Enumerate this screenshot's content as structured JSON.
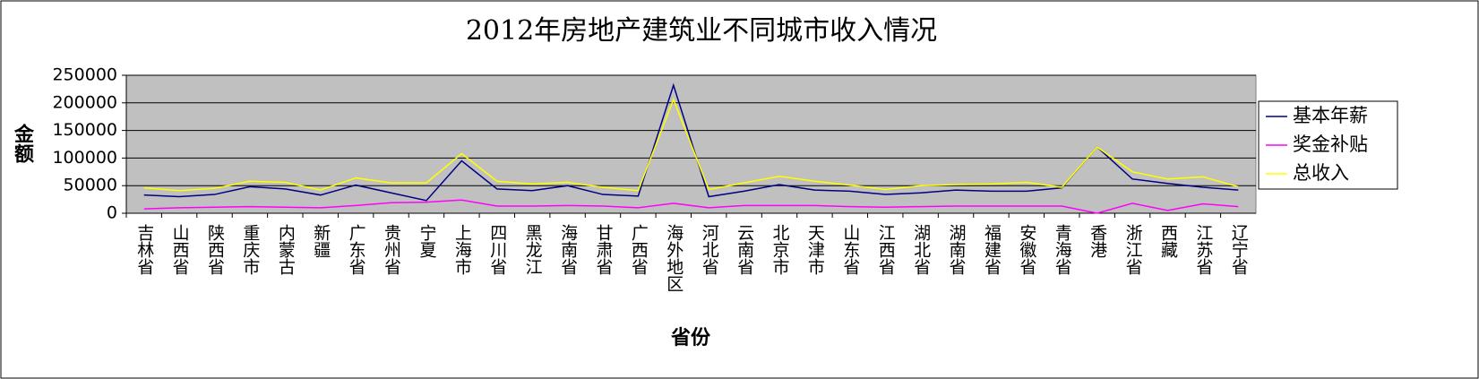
{
  "chart_data": {
    "type": "line",
    "title": "2012年房地产建筑业不同城市收入情况",
    "x_label": "省份",
    "y_label": "金额",
    "categories": [
      "吉林省",
      "山西省",
      "陕西省",
      "重庆市",
      "内蒙古",
      "新疆",
      "广东省",
      "贵州省",
      "宁夏",
      "上海市",
      "四川省",
      "黑龙江",
      "海南省",
      "甘肃省",
      "广西省",
      "海外地区",
      "河北省",
      "云南省",
      "北京市",
      "天津市",
      "山东省",
      "江西省",
      "湖北省",
      "湖南省",
      "福建省",
      "安徽省",
      "青海省",
      "香港",
      "浙江省",
      "西藏",
      "江苏省",
      "辽宁省"
    ],
    "series": [
      {
        "name": "基本年薪",
        "color": "#000080",
        "values": [
          33000,
          30000,
          34000,
          48000,
          44000,
          33000,
          51000,
          37000,
          23000,
          95000,
          44000,
          41000,
          50000,
          34000,
          31000,
          232000,
          30000,
          40000,
          52000,
          42000,
          40000,
          34000,
          37000,
          42000,
          40000,
          40000,
          46000,
          120000,
          62000,
          54000,
          47000,
          42000
        ]
      },
      {
        "name": "奖金补贴",
        "color": "#ff00ff",
        "values": [
          8000,
          10000,
          11000,
          12000,
          11000,
          10000,
          14000,
          19000,
          20000,
          24000,
          13000,
          13000,
          14000,
          13000,
          10000,
          18000,
          10000,
          14000,
          14000,
          14000,
          12000,
          11000,
          12000,
          13000,
          13000,
          13000,
          13000,
          0,
          18000,
          5000,
          17000,
          12000
        ]
      },
      {
        "name": "总收入",
        "color": "#ffff00",
        "values": [
          46000,
          41000,
          45000,
          58000,
          56000,
          42000,
          64000,
          55000,
          55000,
          108000,
          58000,
          53000,
          56000,
          47000,
          41000,
          206000,
          43000,
          55000,
          67000,
          58000,
          51000,
          43000,
          50000,
          52000,
          53000,
          56000,
          47000,
          120000,
          75000,
          62000,
          66000,
          48000
        ]
      }
    ],
    "ylim": [
      0,
      250000
    ],
    "yticks": [
      0,
      50000,
      100000,
      150000,
      200000,
      250000
    ],
    "grid": true,
    "legend": "right",
    "plot_background": "#c0c0c0"
  }
}
